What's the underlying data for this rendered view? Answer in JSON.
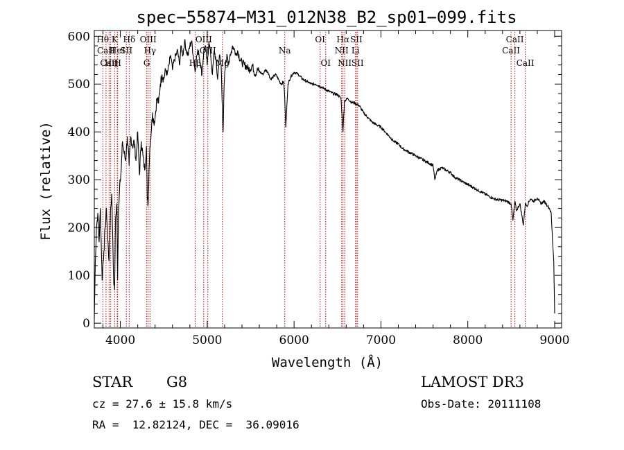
{
  "chart_data": {
    "type": "line",
    "title": "spec−55874−M31_012N38_B2_sp01−099.fits",
    "xlabel": "Wavelength (Å)",
    "ylabel": "Flux (relative)",
    "xlim": [
      3700,
      9080
    ],
    "ylim": [
      -10,
      612
    ],
    "x_ticks": [
      4000,
      5000,
      6000,
      7000,
      8000,
      9000
    ],
    "y_ticks": [
      0,
      100,
      200,
      300,
      400,
      500,
      600
    ],
    "grid": false,
    "series": [
      {
        "name": "flux",
        "x": [
          3700,
          3712,
          3725,
          3740,
          3755,
          3770,
          3790,
          3800,
          3810,
          3825,
          3840,
          3855,
          3870,
          3885,
          3900,
          3912,
          3925,
          3933,
          3945,
          3960,
          3968,
          3980,
          3995,
          4010,
          4025,
          4040,
          4060,
          4080,
          4101,
          4120,
          4140,
          4160,
          4180,
          4200,
          4220,
          4240,
          4260,
          4280,
          4300,
          4310,
          4320,
          4330,
          4340,
          4355,
          4370,
          4385,
          4400,
          4420,
          4440,
          4460,
          4480,
          4500,
          4520,
          4540,
          4560,
          4580,
          4600,
          4620,
          4640,
          4660,
          4680,
          4700,
          4720,
          4740,
          4760,
          4780,
          4800,
          4820,
          4840,
          4861,
          4880,
          4900,
          4920,
          4940,
          4960,
          4980,
          5000,
          5020,
          5040,
          5060,
          5080,
          5100,
          5120,
          5140,
          5160,
          5175,
          5183,
          5195,
          5210,
          5230,
          5250,
          5270,
          5290,
          5310,
          5330,
          5350,
          5380,
          5400,
          5430,
          5460,
          5490,
          5520,
          5550,
          5580,
          5610,
          5640,
          5670,
          5700,
          5730,
          5760,
          5790,
          5820,
          5850,
          5880,
          5893,
          5905,
          5930,
          5960,
          6000,
          6050,
          6100,
          6150,
          6200,
          6250,
          6300,
          6350,
          6400,
          6450,
          6500,
          6540,
          6563,
          6580,
          6620,
          6660,
          6700,
          6750,
          6800,
          6850,
          6900,
          6950,
          7000,
          7050,
          7100,
          7150,
          7200,
          7250,
          7300,
          7350,
          7400,
          7450,
          7500,
          7550,
          7600,
          7620,
          7650,
          7700,
          7750,
          7800,
          7850,
          7900,
          7950,
          8000,
          8050,
          8100,
          8150,
          8200,
          8250,
          8300,
          8350,
          8400,
          8450,
          8498,
          8520,
          8542,
          8560,
          8600,
          8640,
          8662,
          8680,
          8720,
          8760,
          8800,
          8840,
          8880,
          8920,
          8940,
          8960,
          8975,
          8990,
          9000
        ],
        "y": [
          10,
          130,
          200,
          230,
          170,
          240,
          90,
          120,
          150,
          200,
          240,
          175,
          130,
          230,
          270,
          180,
          80,
          70,
          220,
          250,
          90,
          240,
          300,
          320,
          380,
          360,
          340,
          390,
          330,
          390,
          370,
          380,
          340,
          400,
          310,
          380,
          350,
          320,
          370,
          260,
          250,
          320,
          370,
          400,
          440,
          420,
          430,
          470,
          460,
          500,
          520,
          510,
          530,
          520,
          540,
          560,
          530,
          550,
          560,
          570,
          540,
          580,
          560,
          590,
          570,
          560,
          580,
          590,
          560,
          525,
          560,
          570,
          545,
          520,
          570,
          580,
          540,
          590,
          560,
          520,
          570,
          550,
          510,
          560,
          540,
          450,
          400,
          500,
          540,
          560,
          545,
          560,
          580,
          575,
          560,
          570,
          550,
          545,
          540,
          535,
          530,
          540,
          520,
          530,
          525,
          520,
          530,
          525,
          510,
          515,
          520,
          510,
          500,
          505,
          470,
          410,
          500,
          515,
          525,
          520,
          510,
          505,
          500,
          500,
          495,
          490,
          485,
          480,
          478,
          470,
          400,
          465,
          470,
          462,
          460,
          455,
          440,
          430,
          420,
          415,
          410,
          400,
          390,
          380,
          375,
          365,
          360,
          355,
          350,
          345,
          340,
          335,
          330,
          300,
          320,
          325,
          320,
          315,
          305,
          300,
          295,
          290,
          285,
          280,
          275,
          270,
          265,
          260,
          258,
          257,
          255,
          250,
          215,
          255,
          235,
          250,
          205,
          250,
          245,
          260,
          255,
          262,
          250,
          255,
          245,
          240,
          230,
          175,
          130,
          20
        ]
      }
    ],
    "lines": [
      {
        "label": "Hθ",
        "wave": 3798,
        "row": 0
      },
      {
        "label": "CaII",
        "wave": 3835,
        "row": 1
      },
      {
        "label": "CaII",
        "wave": 3870,
        "row": 2
      },
      {
        "label": "Hη",
        "wave": 3889,
        "row": 2
      },
      {
        "label": "K",
        "wave": 3934,
        "row": 0
      },
      {
        "label": "HeI",
        "wave": 3964,
        "row": 1
      },
      {
        "label": "H",
        "wave": 3969,
        "row": 2
      },
      {
        "label": "SII",
        "wave": 4069,
        "row": 1
      },
      {
        "label": "Hδ",
        "wave": 4102,
        "row": 0
      },
      {
        "label": "OIII",
        "wave": 4320,
        "row": 0
      },
      {
        "label": "G",
        "wave": 4304,
        "row": 2
      },
      {
        "label": "Hγ",
        "wave": 4341,
        "row": 1
      },
      {
        "label": "Hβ",
        "wave": 4861,
        "row": 2
      },
      {
        "label": "OIII",
        "wave": 4960,
        "row": 0
      },
      {
        "label": "OIII",
        "wave": 5007,
        "row": 1
      },
      {
        "label": "Mg",
        "wave": 5175,
        "row": 2
      },
      {
        "label": "Na",
        "wave": 5893,
        "row": 1
      },
      {
        "label": "OI",
        "wave": 6300,
        "row": 0
      },
      {
        "label": "OI",
        "wave": 6364,
        "row": 2
      },
      {
        "label": "Hα",
        "wave": 6563,
        "row": 0
      },
      {
        "label": "NII",
        "wave": 6548,
        "row": 1
      },
      {
        "label": "NII",
        "wave": 6583,
        "row": 2
      },
      {
        "label": "SII",
        "wave": 6716,
        "row": 0
      },
      {
        "label": "Li",
        "wave": 6708,
        "row": 1
      },
      {
        "label": "SII",
        "wave": 6731,
        "row": 2
      },
      {
        "label": "CaII",
        "wave": 8498,
        "row": 1
      },
      {
        "label": "CaII",
        "wave": 8542,
        "row": 0
      },
      {
        "label": "CaII",
        "wave": 8662,
        "row": 2
      }
    ]
  },
  "info": {
    "class_label": "STAR",
    "subclass": "G8",
    "survey": "LAMOST DR3",
    "redshift_text": "cz = 27.6 ± 15.8 km/s",
    "obs_date": "Obs-Date: 20111108",
    "coords_text": "RA =  12.82124, DEC =  36.09016"
  },
  "colors": {
    "spectrum": "#000000",
    "line_marker": "#cc0000",
    "axes": "#000000"
  }
}
